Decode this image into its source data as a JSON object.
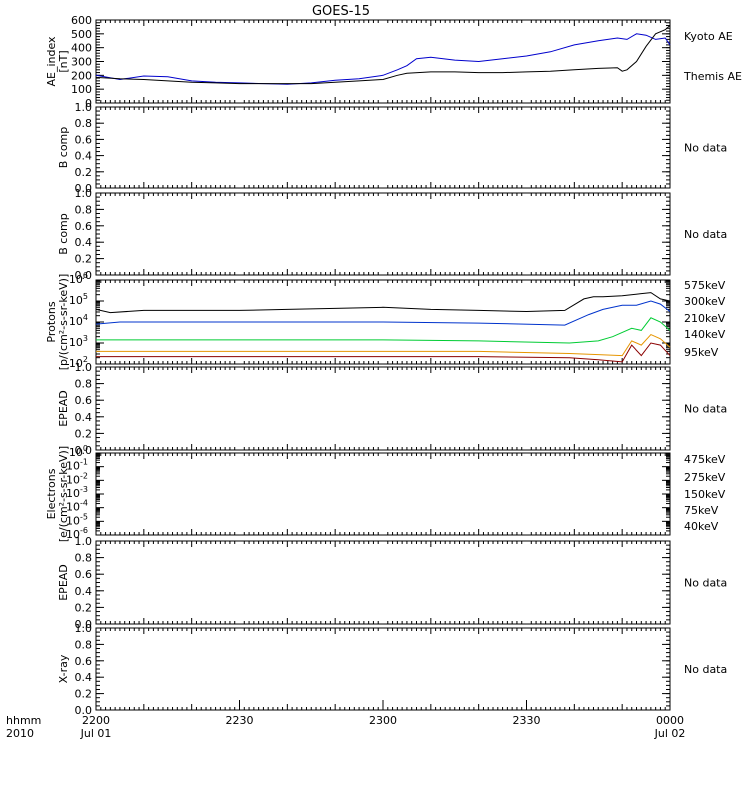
{
  "title": "GOES-15",
  "x_axis": {
    "corner_label_1": "hhmm",
    "corner_label_2": "2010",
    "ticks": [
      {
        "t": 0,
        "label": "2200",
        "sub": "Jul 01"
      },
      {
        "t": 30,
        "label": "2230",
        "sub": ""
      },
      {
        "t": 60,
        "label": "2300",
        "sub": ""
      },
      {
        "t": 90,
        "label": "2330",
        "sub": ""
      },
      {
        "t": 120,
        "label": "0000",
        "sub": "Jul 02"
      }
    ],
    "range_minutes": [
      0,
      120
    ]
  },
  "colors": {
    "kyoto": "#0000cc",
    "themis": "#000000",
    "e575": "#8b0000",
    "e300": "#e69500",
    "e210": "#00cc33",
    "e140": "#0033cc",
    "e95": "#000000"
  },
  "chart_data": [
    {
      "type": "line",
      "panel": "ae",
      "ylabel_line1": "AE_index",
      "ylabel_line2": "[nT]",
      "ylim": [
        0,
        600
      ],
      "yticks": [
        0,
        100,
        200,
        300,
        400,
        500,
        600
      ],
      "series": [
        {
          "name": "Kyoto AE",
          "color": "kyoto",
          "x": [
            0,
            5,
            10,
            15,
            20,
            25,
            30,
            35,
            40,
            45,
            50,
            55,
            60,
            63,
            65,
            67,
            70,
            75,
            80,
            85,
            90,
            95,
            100,
            105,
            109,
            111,
            113,
            115,
            117,
            119,
            120
          ],
          "y": [
            200,
            170,
            195,
            190,
            160,
            150,
            145,
            140,
            135,
            145,
            165,
            175,
            200,
            240,
            270,
            320,
            330,
            310,
            300,
            320,
            340,
            370,
            420,
            450,
            470,
            460,
            500,
            490,
            460,
            470,
            420
          ]
        },
        {
          "name": "Themis AE",
          "color": "themis",
          "x": [
            0,
            5,
            10,
            15,
            20,
            25,
            30,
            35,
            40,
            45,
            50,
            55,
            60,
            63,
            65,
            70,
            75,
            80,
            85,
            90,
            95,
            100,
            105,
            109,
            110,
            111,
            113,
            115,
            117,
            119,
            120
          ],
          "y": [
            185,
            175,
            170,
            160,
            150,
            145,
            140,
            140,
            140,
            140,
            150,
            160,
            170,
            200,
            215,
            225,
            225,
            220,
            220,
            225,
            230,
            240,
            250,
            255,
            230,
            240,
            300,
            410,
            500,
            530,
            560
          ]
        }
      ]
    },
    {
      "type": "line",
      "panel": "b1",
      "ylabel": "B comp",
      "ylim": [
        0,
        1
      ],
      "yticks": [
        0,
        0.2,
        0.4,
        0.6,
        0.8,
        1.0
      ],
      "note": "No data"
    },
    {
      "type": "line",
      "panel": "b2",
      "ylabel": "B comp",
      "ylim": [
        0,
        1
      ],
      "yticks": [
        0,
        0.2,
        0.4,
        0.6,
        0.8,
        1.0
      ],
      "note": "No data"
    },
    {
      "type": "line",
      "panel": "protons",
      "log": true,
      "ylabel_line1": "Protons",
      "ylabel_line2": "[p/(cm²-s-sr-keV)]",
      "ylim_exp": [
        2,
        6
      ],
      "ytick_exps": [
        2,
        3,
        4,
        5,
        6
      ],
      "series": [
        {
          "name": "575keV",
          "color": "e575",
          "x": [
            0,
            20,
            40,
            60,
            80,
            99,
            105,
            110,
            112,
            114,
            116,
            118,
            120
          ],
          "y": [
            2.35,
            2.35,
            2.35,
            2.35,
            2.35,
            2.3,
            2.2,
            2.1,
            2.9,
            2.4,
            3.0,
            2.9,
            2.4
          ]
        },
        {
          "name": "300keV",
          "color": "e300",
          "x": [
            0,
            20,
            40,
            60,
            80,
            99,
            105,
            110,
            112,
            114,
            116,
            118,
            120
          ],
          "y": [
            2.6,
            2.6,
            2.6,
            2.6,
            2.6,
            2.5,
            2.45,
            2.4,
            3.1,
            2.9,
            3.4,
            3.2,
            2.8
          ]
        },
        {
          "name": "210keV",
          "color": "e210",
          "x": [
            0,
            20,
            40,
            60,
            80,
            99,
            105,
            108,
            112,
            114,
            116,
            118,
            120
          ],
          "y": [
            3.15,
            3.15,
            3.15,
            3.15,
            3.1,
            3.0,
            3.1,
            3.3,
            3.7,
            3.6,
            4.2,
            4.0,
            3.6
          ]
        },
        {
          "name": "140keV",
          "color": "e140",
          "x": [
            0,
            5,
            20,
            40,
            60,
            80,
            98,
            103,
            106,
            110,
            113,
            116,
            118,
            120
          ],
          "y": [
            3.9,
            4.0,
            4.0,
            4.0,
            4.0,
            3.95,
            3.85,
            4.35,
            4.6,
            4.8,
            4.8,
            5.0,
            4.85,
            4.5
          ]
        },
        {
          "name": "95keV",
          "color": "e95",
          "x": [
            0,
            3,
            10,
            20,
            30,
            40,
            50,
            60,
            70,
            80,
            90,
            98,
            102,
            104,
            106,
            110,
            114,
            116,
            118,
            120
          ],
          "y": [
            4.6,
            4.45,
            4.55,
            4.55,
            4.55,
            4.6,
            4.65,
            4.7,
            4.6,
            4.55,
            4.5,
            4.55,
            5.1,
            5.2,
            5.2,
            5.25,
            5.35,
            5.4,
            5.1,
            5.0
          ]
        }
      ]
    },
    {
      "type": "line",
      "panel": "epead1",
      "ylabel": "EPEAD",
      "ylim": [
        0,
        1
      ],
      "yticks": [
        0,
        0.2,
        0.4,
        0.6,
        0.8,
        1.0
      ],
      "note": "No data"
    },
    {
      "type": "line",
      "panel": "electrons",
      "log": true,
      "ylabel_line1": "Electrons",
      "ylabel_line2": "[e/(cm²-s-sr-keV)]",
      "ylim_exp": [
        -6,
        0
      ],
      "ytick_exps": [
        -6,
        -5,
        -4,
        -3,
        -2,
        -1,
        0
      ],
      "legend": [
        {
          "name": "475keV",
          "color": "e575"
        },
        {
          "name": "275keV",
          "color": "e300"
        },
        {
          "name": "150keV",
          "color": "e210"
        },
        {
          "name": "75keV",
          "color": "e140"
        },
        {
          "name": "40keV",
          "color": "e95"
        }
      ]
    },
    {
      "type": "line",
      "panel": "epead2",
      "ylabel": "EPEAD",
      "ylim": [
        0,
        1
      ],
      "yticks": [
        0,
        0.2,
        0.4,
        0.6,
        0.8,
        1.0
      ],
      "note": "No data"
    },
    {
      "type": "line",
      "panel": "xray",
      "ylabel": "X-ray",
      "ylim": [
        0,
        1
      ],
      "yticks": [
        0,
        0.2,
        0.4,
        0.6,
        0.8,
        1.0
      ],
      "note": "No data"
    }
  ]
}
